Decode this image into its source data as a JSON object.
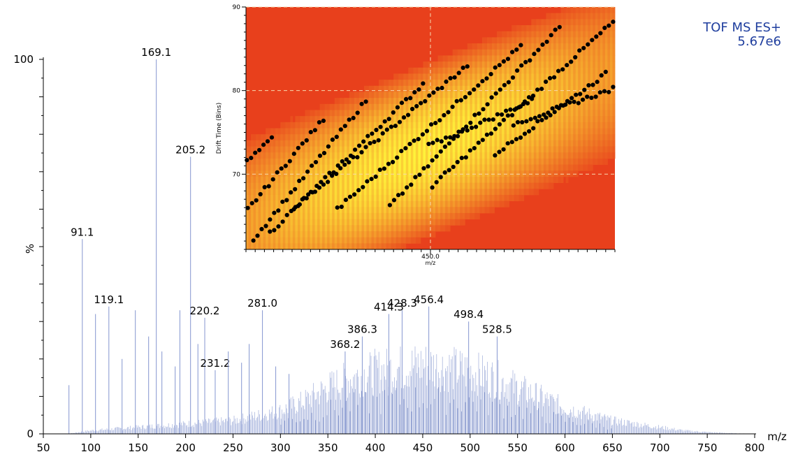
{
  "instrument": {
    "mode": "TOF MS ES+",
    "intensity": "5.67e6"
  },
  "colors": {
    "spectrum": "#8f9fd4",
    "spectrum_dark": "#3b55a8",
    "axis": "#000000",
    "instrument_text": "#1f3e9e",
    "heat_low": "#e8401c",
    "heat_high": "#fff23a",
    "points": "#000000"
  },
  "chart_data": [
    {
      "type": "bar",
      "title": "",
      "xlabel": "m/z",
      "ylabel": "%",
      "xlim": [
        50,
        800
      ],
      "ylim": [
        0,
        100
      ],
      "x_ticks": [
        50,
        100,
        150,
        200,
        250,
        300,
        350,
        400,
        450,
        500,
        550,
        600,
        650,
        700,
        750,
        800
      ],
      "y_ticks": [
        0,
        100
      ],
      "grid": false,
      "envelope": {
        "x": [
          50,
          75,
          100,
          150,
          200,
          250,
          300,
          325,
          350,
          375,
          400,
          425,
          450,
          475,
          500,
          525,
          550,
          575,
          600,
          625,
          650,
          675,
          700,
          725,
          750,
          775,
          800
        ],
        "y": [
          0,
          0,
          1,
          2,
          3,
          4,
          7,
          10,
          14,
          17,
          19,
          20,
          21,
          20,
          19,
          17,
          14,
          11,
          8,
          6,
          4,
          3,
          2,
          1,
          0.5,
          0.2,
          0
        ]
      },
      "peaks": [
        {
          "x": 91.1,
          "y": 52,
          "label": "91.1"
        },
        {
          "x": 119.1,
          "y": 34,
          "label": "119.1"
        },
        {
          "x": 169.1,
          "y": 100,
          "label": "169.1"
        },
        {
          "x": 205.2,
          "y": 74,
          "label": "205.2"
        },
        {
          "x": 220.2,
          "y": 31,
          "label": "220.2"
        },
        {
          "x": 231.2,
          "y": 17,
          "label": "231.2"
        },
        {
          "x": 281.0,
          "y": 33,
          "label": "281.0"
        },
        {
          "x": 368.2,
          "y": 22,
          "label": "368.2"
        },
        {
          "x": 386.3,
          "y": 26,
          "label": "386.3"
        },
        {
          "x": 414.3,
          "y": 32,
          "label": "414.3"
        },
        {
          "x": 428.3,
          "y": 33,
          "label": "428.3"
        },
        {
          "x": 456.4,
          "y": 34,
          "label": "456.4"
        },
        {
          "x": 498.4,
          "y": 30,
          "label": "498.4"
        },
        {
          "x": 528.5,
          "y": 26,
          "label": "528.5"
        },
        {
          "x": 77,
          "y": 13
        },
        {
          "x": 105,
          "y": 32
        },
        {
          "x": 133,
          "y": 20
        },
        {
          "x": 147,
          "y": 33
        },
        {
          "x": 161,
          "y": 26
        },
        {
          "x": 175,
          "y": 22
        },
        {
          "x": 189,
          "y": 18
        },
        {
          "x": 194,
          "y": 33
        },
        {
          "x": 213,
          "y": 24
        },
        {
          "x": 245,
          "y": 22
        },
        {
          "x": 259,
          "y": 19
        },
        {
          "x": 267,
          "y": 24
        },
        {
          "x": 295,
          "y": 18
        },
        {
          "x": 309,
          "y": 16
        }
      ]
    },
    {
      "type": "heatmap",
      "title": "",
      "xlabel": "m/z",
      "ylabel": "Drift Time (Bins)",
      "x_tick_label": "450.0",
      "xlim": [
        250,
        650
      ],
      "ylim": [
        61,
        90
      ],
      "y_ticks": [
        70,
        80,
        90
      ],
      "grid": true,
      "series": [
        {
          "x": [
            251,
            278
          ],
          "y": [
            71.5,
            74.2
          ]
        },
        {
          "x": [
            252,
            334
          ],
          "y": [
            65.8,
            76.6
          ]
        },
        {
          "x": [
            258,
            380
          ],
          "y": [
            62.2,
            78.8
          ]
        },
        {
          "x": [
            276,
            442
          ],
          "y": [
            63.0,
            80.8
          ]
        },
        {
          "x": [
            302,
            490
          ],
          "y": [
            66.0,
            83.0
          ]
        },
        {
          "x": [
            349,
            548
          ],
          "y": [
            65.8,
            85.3
          ]
        },
        {
          "x": [
            406,
            590
          ],
          "y": [
            66.2,
            87.6
          ]
        },
        {
          "x": [
            452,
            648
          ],
          "y": [
            68.6,
            88.2
          ]
        },
        {
          "x": [
            448,
            560
          ],
          "y": [
            73.4,
            78.8
          ]
        },
        {
          "x": [
            520,
            640
          ],
          "y": [
            72.4,
            82.0
          ]
        },
        {
          "x": [
            540,
            648
          ],
          "y": [
            76.0,
            80.2
          ]
        }
      ]
    }
  ]
}
